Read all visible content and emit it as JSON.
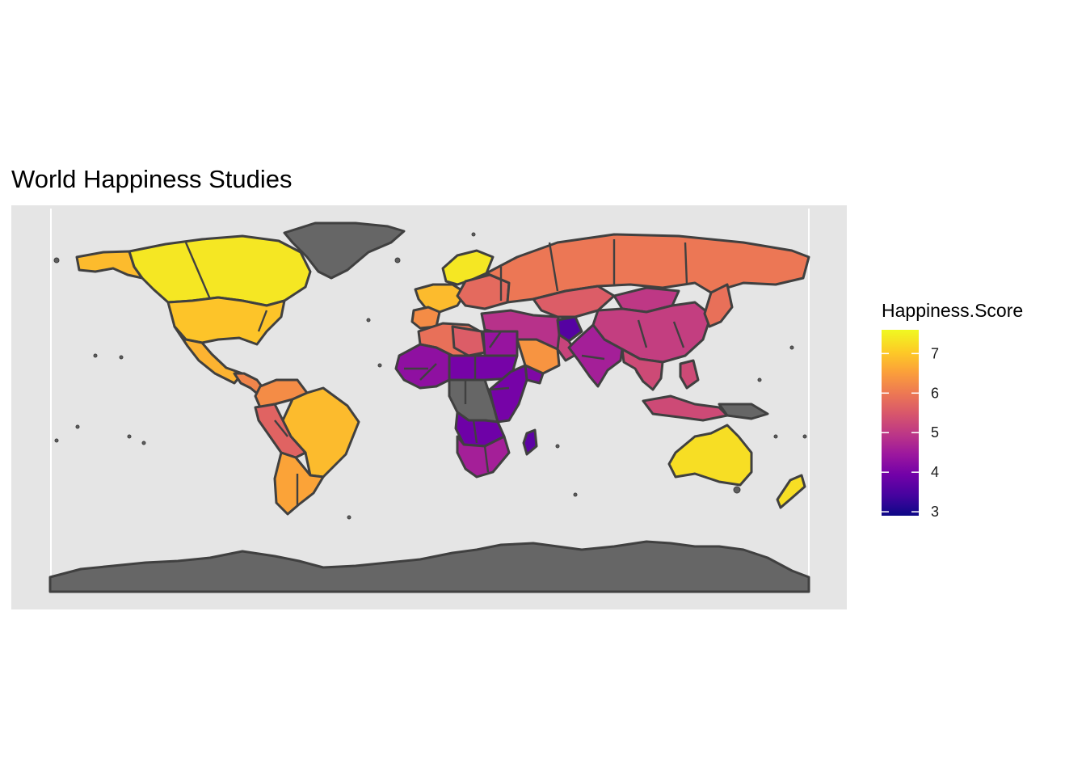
{
  "chart_data": {
    "type": "choropleth",
    "title": "World Happiness Studies",
    "legend": {
      "title": "Happiness.Score",
      "placement": "right",
      "range": [
        2.9,
        7.6
      ],
      "ticks": [
        3,
        4,
        5,
        6,
        7
      ],
      "palette": [
        "#0d0887",
        "#46039f",
        "#7201a8",
        "#9c179e",
        "#bd3786",
        "#d8576b",
        "#ed7953",
        "#fb9f3a",
        "#fdca26",
        "#f0f921"
      ],
      "missing_color": "#666666"
    },
    "panel_background": "#e5e5e5",
    "border_color": "#404040",
    "regions": [
      {
        "id": "canada",
        "score": 7.4
      },
      {
        "id": "alaska",
        "score": 6.9
      },
      {
        "id": "usa",
        "score": 7.0
      },
      {
        "id": "mexico",
        "score": 6.8
      },
      {
        "id": "central-america",
        "score": 6.2
      },
      {
        "id": "colombia-venezuela",
        "score": 6.3
      },
      {
        "id": "brazil",
        "score": 6.9
      },
      {
        "id": "peru-bolivia",
        "score": 5.7
      },
      {
        "id": "argentina-chile",
        "score": 6.6
      },
      {
        "id": "greenland",
        "score": null
      },
      {
        "id": "scandinavia",
        "score": 7.4
      },
      {
        "id": "western-europe",
        "score": 6.9
      },
      {
        "id": "iberia",
        "score": 6.3
      },
      {
        "id": "eastern-europe",
        "score": 5.8
      },
      {
        "id": "russia",
        "score": 6.0
      },
      {
        "id": "central-asia",
        "score": 5.6
      },
      {
        "id": "mongolia",
        "score": 5.0
      },
      {
        "id": "china",
        "score": 5.1
      },
      {
        "id": "turkey-iran",
        "score": 4.9
      },
      {
        "id": "afghanistan",
        "score": 3.6
      },
      {
        "id": "india",
        "score": 4.6
      },
      {
        "id": "pakistan",
        "score": 5.2
      },
      {
        "id": "north-africa",
        "score": 5.9
      },
      {
        "id": "libya",
        "score": 5.6
      },
      {
        "id": "egypt",
        "score": 4.4
      },
      {
        "id": "saudi-arabia",
        "score": 6.4
      },
      {
        "id": "yemen",
        "score": 4.1
      },
      {
        "id": "west-africa",
        "score": 4.3
      },
      {
        "id": "sahel",
        "score": 4.0
      },
      {
        "id": "east-africa",
        "score": 4.0
      },
      {
        "id": "central-africa",
        "score": null
      },
      {
        "id": "southern-africa",
        "score": 4.6
      },
      {
        "id": "zambia-region",
        "score": 3.9
      },
      {
        "id": "madagascar",
        "score": 3.7
      },
      {
        "id": "southeast-asia",
        "score": 5.3
      },
      {
        "id": "thailand",
        "score": 6.3
      },
      {
        "id": "indonesia",
        "score": 5.3
      },
      {
        "id": "philippines",
        "score": 5.3
      },
      {
        "id": "japan-korea",
        "score": 5.9
      },
      {
        "id": "australia",
        "score": 7.3
      },
      {
        "id": "new-zealand",
        "score": 7.3
      },
      {
        "id": "papua",
        "score": null
      },
      {
        "id": "antarctica",
        "score": null
      }
    ]
  }
}
